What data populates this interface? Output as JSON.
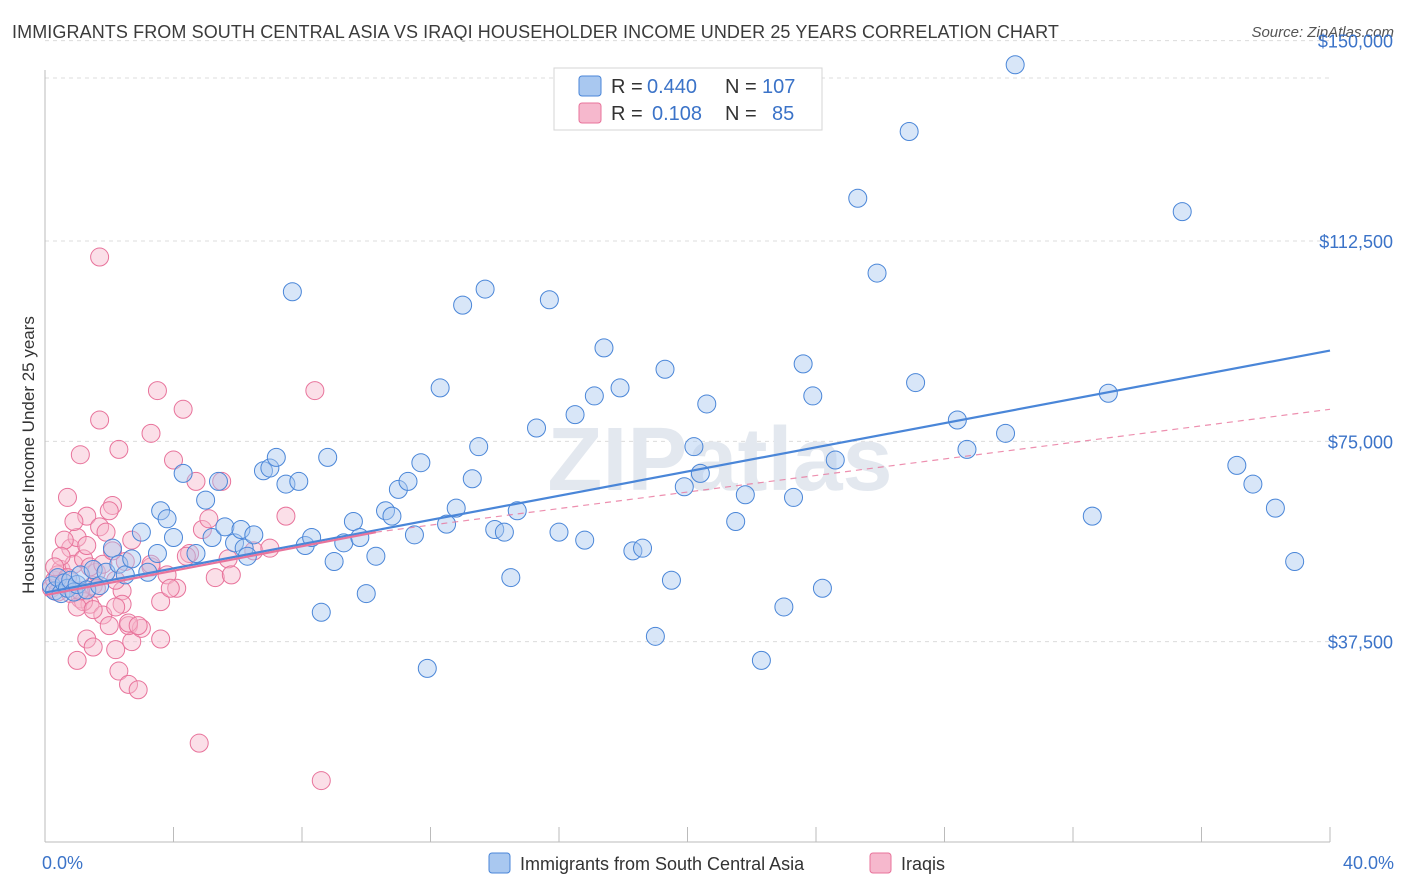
{
  "title": "IMMIGRANTS FROM SOUTH CENTRAL ASIA VS IRAQI HOUSEHOLDER INCOME UNDER 25 YEARS CORRELATION CHART",
  "source": "Source: ZipAtlas.com",
  "watermark": "ZIPatlas",
  "chart_data": {
    "type": "scatter",
    "ylabel": "Householder Income Under 25 years",
    "xlim": [
      0,
      40
    ],
    "ylim": [
      0,
      152000
    ],
    "x_tick_labels": {
      "min": "0.0%",
      "max": "40.0%"
    },
    "y_ticks": [
      {
        "value": 37500,
        "label": "$37,500"
      },
      {
        "value": 75000,
        "label": "$75,000"
      },
      {
        "value": 112500,
        "label": "$112,500"
      },
      {
        "value": 150000,
        "label": "$150,000"
      }
    ],
    "grid": "horizontal dashed",
    "legend_position": "bottom",
    "stats": [
      {
        "r_label": "R = ",
        "r": "0.440",
        "n_label": "N = ",
        "n": "107",
        "color": "#4a86d8"
      },
      {
        "r_label": "R = ",
        "r": "0.108",
        "n_label": "N = ",
        "n": "85",
        "color": "#e8739b"
      }
    ],
    "series": [
      {
        "name": "Immigrants from South Central Asia",
        "color": "#4a86d8",
        "fill": "#a9c8f0",
        "trend": {
          "x": [
            0.0,
            40.0
          ],
          "y": [
            46700,
            92000
          ],
          "style": "solid"
        },
        "points": [
          [
            0.2,
            48000
          ],
          [
            0.3,
            47000
          ],
          [
            0.4,
            49500
          ],
          [
            0.5,
            46500
          ],
          [
            0.6,
            48500
          ],
          [
            0.7,
            47500
          ],
          [
            0.8,
            49000
          ],
          [
            0.9,
            46800
          ],
          [
            1.0,
            48200
          ],
          [
            1.1,
            50000
          ],
          [
            1.3,
            47200
          ],
          [
            1.5,
            51000
          ],
          [
            1.7,
            48000
          ],
          [
            1.9,
            50500
          ],
          [
            2.1,
            55000
          ],
          [
            2.3,
            52000
          ],
          [
            2.5,
            50000
          ],
          [
            2.7,
            53000
          ],
          [
            3.0,
            58000
          ],
          [
            3.2,
            50500
          ],
          [
            3.5,
            54000
          ],
          [
            3.6,
            62000
          ],
          [
            3.8,
            60500
          ],
          [
            4.0,
            57000
          ],
          [
            4.3,
            69000
          ],
          [
            4.7,
            54000
          ],
          [
            5.0,
            64000
          ],
          [
            5.2,
            57000
          ],
          [
            5.4,
            67500
          ],
          [
            5.6,
            59000
          ],
          [
            5.9,
            56000
          ],
          [
            6.1,
            58500
          ],
          [
            6.2,
            55000
          ],
          [
            6.3,
            53500
          ],
          [
            6.5,
            57500
          ],
          [
            6.8,
            69500
          ],
          [
            7.0,
            70000
          ],
          [
            7.2,
            72000
          ],
          [
            7.5,
            67000
          ],
          [
            7.7,
            103000
          ],
          [
            7.9,
            67500
          ],
          [
            8.1,
            55500
          ],
          [
            8.3,
            57000
          ],
          [
            8.6,
            43000
          ],
          [
            8.8,
            72000
          ],
          [
            9.0,
            52500
          ],
          [
            9.3,
            56000
          ],
          [
            9.6,
            60000
          ],
          [
            9.8,
            57000
          ],
          [
            10.0,
            46500
          ],
          [
            10.3,
            53500
          ],
          [
            10.6,
            62000
          ],
          [
            10.8,
            61000
          ],
          [
            11.0,
            66000
          ],
          [
            11.3,
            67500
          ],
          [
            11.5,
            57500
          ],
          [
            11.7,
            71000
          ],
          [
            11.9,
            32500
          ],
          [
            12.3,
            85000
          ],
          [
            12.5,
            59500
          ],
          [
            12.8,
            62500
          ],
          [
            13.0,
            100500
          ],
          [
            13.3,
            68000
          ],
          [
            13.5,
            74000
          ],
          [
            13.7,
            103500
          ],
          [
            14.0,
            58500
          ],
          [
            14.3,
            58000
          ],
          [
            14.5,
            49500
          ],
          [
            14.7,
            62000
          ],
          [
            15.3,
            77500
          ],
          [
            15.7,
            101500
          ],
          [
            16.0,
            58000
          ],
          [
            16.5,
            80000
          ],
          [
            16.8,
            56500
          ],
          [
            17.1,
            83500
          ],
          [
            17.4,
            92500
          ],
          [
            17.9,
            85000
          ],
          [
            18.3,
            54500
          ],
          [
            18.6,
            55000
          ],
          [
            19.0,
            38500
          ],
          [
            19.3,
            88500
          ],
          [
            19.5,
            49000
          ],
          [
            19.9,
            66500
          ],
          [
            20.2,
            74000
          ],
          [
            20.4,
            69000
          ],
          [
            20.6,
            82000
          ],
          [
            21.5,
            60000
          ],
          [
            21.8,
            65000
          ],
          [
            22.3,
            34000
          ],
          [
            23.0,
            44000
          ],
          [
            23.3,
            64500
          ],
          [
            23.6,
            89500
          ],
          [
            23.9,
            83500
          ],
          [
            24.2,
            47500
          ],
          [
            24.6,
            71500
          ],
          [
            25.3,
            120500
          ],
          [
            25.9,
            106500
          ],
          [
            26.9,
            133000
          ],
          [
            27.1,
            86000
          ],
          [
            28.4,
            79000
          ],
          [
            28.7,
            73500
          ],
          [
            29.9,
            76500
          ],
          [
            32.6,
            61000
          ],
          [
            33.1,
            84000
          ],
          [
            30.2,
            145500
          ],
          [
            35.4,
            118000
          ],
          [
            37.1,
            70500
          ],
          [
            37.6,
            67000
          ],
          [
            38.3,
            62500
          ],
          [
            38.9,
            52500
          ]
        ]
      },
      {
        "name": "Iraqis",
        "color": "#e8739b",
        "fill": "#f6b8cd",
        "trend": {
          "x": [
            0.0,
            10.3
          ],
          "y": [
            46200,
            58000
          ],
          "style": "solid"
        },
        "trend_ext": {
          "x": [
            10.3,
            40.0
          ],
          "y": [
            58000,
            81000
          ],
          "style": "dashed"
        },
        "points": [
          [
            0.2,
            47500
          ],
          [
            0.3,
            49000
          ],
          [
            0.4,
            46800
          ],
          [
            0.5,
            51000
          ],
          [
            0.6,
            48500
          ],
          [
            0.7,
            64500
          ],
          [
            0.8,
            55000
          ],
          [
            0.9,
            52000
          ],
          [
            1.0,
            57000
          ],
          [
            1.1,
            45500
          ],
          [
            1.2,
            53000
          ],
          [
            1.3,
            61000
          ],
          [
            1.4,
            44500
          ],
          [
            1.5,
            48000
          ],
          [
            1.6,
            50500
          ],
          [
            1.7,
            59000
          ],
          [
            1.8,
            42500
          ],
          [
            1.9,
            58000
          ],
          [
            2.0,
            40500
          ],
          [
            2.1,
            63000
          ],
          [
            2.2,
            36000
          ],
          [
            2.3,
            32000
          ],
          [
            2.4,
            47000
          ],
          [
            2.5,
            52500
          ],
          [
            2.6,
            29500
          ],
          [
            2.7,
            37500
          ],
          [
            1.0,
            34000
          ],
          [
            1.1,
            72500
          ],
          [
            1.3,
            38000
          ],
          [
            1.5,
            36500
          ],
          [
            1.7,
            79000
          ],
          [
            2.0,
            62000
          ],
          [
            2.3,
            73500
          ],
          [
            2.6,
            40500
          ],
          [
            2.7,
            56500
          ],
          [
            2.9,
            28500
          ],
          [
            3.0,
            40000
          ],
          [
            3.3,
            51500
          ],
          [
            3.5,
            84500
          ],
          [
            3.6,
            38000
          ],
          [
            3.8,
            50000
          ],
          [
            4.0,
            71500
          ],
          [
            4.1,
            47500
          ],
          [
            4.3,
            81000
          ],
          [
            4.5,
            54000
          ],
          [
            4.7,
            67500
          ],
          [
            4.9,
            58500
          ],
          [
            5.1,
            60500
          ],
          [
            5.3,
            49500
          ],
          [
            5.5,
            67500
          ],
          [
            5.7,
            53000
          ],
          [
            6.5,
            54500
          ],
          [
            7.0,
            55000
          ],
          [
            7.5,
            61000
          ],
          [
            8.4,
            84500
          ],
          [
            8.6,
            11500
          ],
          [
            3.3,
            76500
          ],
          [
            4.8,
            18500
          ],
          [
            1.7,
            109500
          ],
          [
            0.6,
            56500
          ],
          [
            1.3,
            55500
          ],
          [
            0.9,
            60000
          ],
          [
            2.2,
            49000
          ],
          [
            0.4,
            50000
          ],
          [
            0.8,
            46500
          ],
          [
            1.2,
            45000
          ],
          [
            1.6,
            47500
          ],
          [
            2.4,
            44500
          ],
          [
            0.5,
            53500
          ],
          [
            1.4,
            51500
          ],
          [
            1.8,
            52000
          ],
          [
            2.2,
            44000
          ],
          [
            0.3,
            51500
          ],
          [
            1.0,
            44000
          ],
          [
            2.6,
            41000
          ],
          [
            3.6,
            45000
          ],
          [
            3.3,
            52000
          ],
          [
            0.7,
            49500
          ],
          [
            1.1,
            47000
          ],
          [
            1.5,
            43500
          ],
          [
            2.1,
            54500
          ],
          [
            2.9,
            40500
          ],
          [
            3.9,
            47500
          ],
          [
            4.4,
            53500
          ],
          [
            5.8,
            50000
          ]
        ]
      }
    ]
  }
}
